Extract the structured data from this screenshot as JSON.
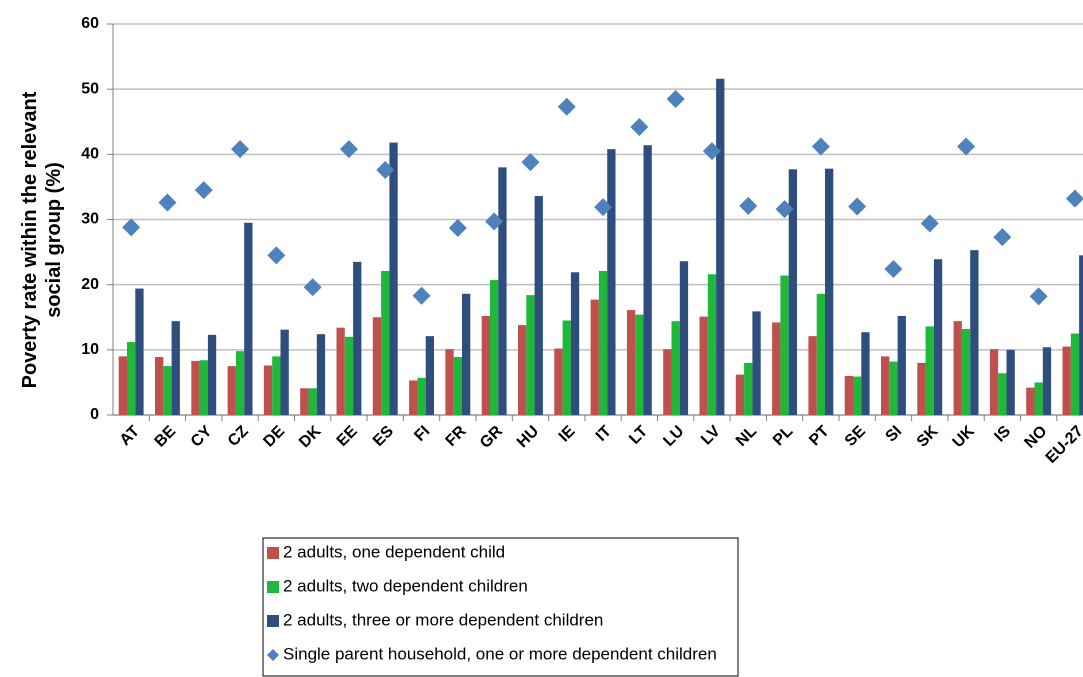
{
  "chart_data": {
    "type": "bar",
    "y_label": "Poverty rate within the relevant social group (%)",
    "categories": [
      "AT",
      "BE",
      "CY",
      "CZ",
      "DE",
      "DK",
      "EE",
      "ES",
      "FI",
      "FR",
      "GR",
      "HU",
      "IE",
      "IT",
      "LT",
      "LU",
      "LV",
      "NL",
      "PL",
      "PT",
      "SE",
      "SI",
      "SK",
      "UK",
      "IS",
      "NO",
      "EU-27"
    ],
    "series": [
      {
        "name": "2 adults, one dependent child",
        "color": "#c0504d",
        "type": "bar",
        "values": [
          9.0,
          8.9,
          8.3,
          7.5,
          7.6,
          4.1,
          13.4,
          15.0,
          5.3,
          10.1,
          15.2,
          13.8,
          10.2,
          17.7,
          16.1,
          10.1,
          15.1,
          6.2,
          14.2,
          12.1,
          6.0,
          9.0,
          8.0,
          14.4,
          10.1,
          4.2,
          10.5
        ]
      },
      {
        "name": "2 adults, two dependent children",
        "color": "#1fb83a",
        "type": "bar",
        "values": [
          11.2,
          7.5,
          8.4,
          9.8,
          9.0,
          4.1,
          12.0,
          22.1,
          5.7,
          8.9,
          20.7,
          18.4,
          14.5,
          22.1,
          15.4,
          14.4,
          21.6,
          8.0,
          21.4,
          18.6,
          5.9,
          8.2,
          13.6,
          13.2,
          6.4,
          5.0,
          12.5
        ]
      },
      {
        "name": "2 adults, three or more dependent children",
        "color": "#2f4e7e",
        "type": "bar",
        "values": [
          19.4,
          14.4,
          12.3,
          29.5,
          13.1,
          12.4,
          23.5,
          41.8,
          12.1,
          18.6,
          38.0,
          33.6,
          21.9,
          40.8,
          41.4,
          23.6,
          51.6,
          15.9,
          37.7,
          37.8,
          12.7,
          15.2,
          23.9,
          25.3,
          10.0,
          10.4,
          24.5
        ]
      },
      {
        "name": "Single parent household, one or more dependent children",
        "color": "#4f81bd",
        "type": "scatter",
        "values": [
          28.8,
          32.6,
          34.5,
          40.8,
          24.5,
          19.6,
          40.8,
          37.6,
          18.3,
          28.7,
          29.7,
          38.8,
          47.3,
          31.9,
          44.2,
          48.5,
          40.5,
          32.1,
          31.6,
          41.2,
          32.0,
          22.4,
          29.4,
          41.2,
          27.3,
          18.2,
          33.2
        ]
      }
    ],
    "ylim": [
      0,
      60
    ],
    "yticks": [
      0,
      10,
      20,
      30,
      40,
      50,
      60
    ],
    "grid": true
  }
}
